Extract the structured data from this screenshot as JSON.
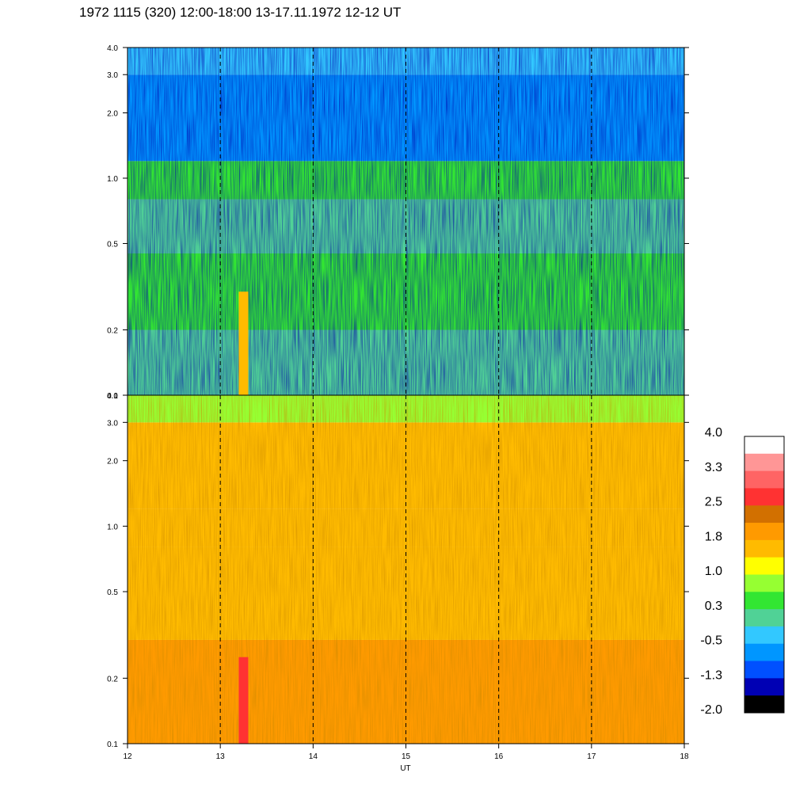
{
  "title": "1972 1115 (320) 12:00-18:00 13-17.11.1972  12-12 UT",
  "chart_data": {
    "type": "heatmap",
    "xlabel": "UT",
    "xlim": [
      12,
      18
    ],
    "x_ticks": [
      "12",
      "13",
      "14",
      "15",
      "16",
      "17",
      "18"
    ],
    "x_dashed_lines": [
      13,
      14,
      15,
      16,
      17
    ],
    "panels": [
      {
        "name": "upper",
        "y_scale": "log",
        "ylim": [
          0.1,
          4.0
        ],
        "y_ticks": [
          {
            "value": 0.1,
            "label": "0.1"
          },
          {
            "value": 0.2,
            "label": "0.2"
          },
          {
            "value": 0.5,
            "label": "0.5"
          },
          {
            "value": 1.0,
            "label": "1.0"
          },
          {
            "value": 2.0,
            "label": "2.0"
          },
          {
            "value": 3.0,
            "label": "3.0"
          },
          {
            "value": 4.0,
            "label": "4.0"
          }
        ],
        "approx_level_by_band": [
          {
            "y_range": [
              0.1,
              0.2
            ],
            "level": 0.1
          },
          {
            "y_range": [
              0.2,
              0.45
            ],
            "level": 0.5
          },
          {
            "y_range": [
              0.45,
              0.8
            ],
            "level": 0.2
          },
          {
            "y_range": [
              0.8,
              1.2
            ],
            "level": 0.3
          },
          {
            "y_range": [
              1.2,
              3.0
            ],
            "level": -0.6
          },
          {
            "y_range": [
              3.0,
              4.0
            ],
            "level": -0.3
          }
        ],
        "features": [
          {
            "x": 13.25,
            "y_range": [
              0.1,
              0.3
            ],
            "level": 1.5
          }
        ]
      },
      {
        "name": "lower",
        "y_scale": "log",
        "ylim": [
          0.1,
          4.0
        ],
        "y_ticks": [
          {
            "value": 0.1,
            "label": "0.1"
          },
          {
            "value": 0.2,
            "label": "0.2"
          },
          {
            "value": 0.5,
            "label": "0.5"
          },
          {
            "value": 1.0,
            "label": "1.0"
          },
          {
            "value": 2.0,
            "label": "2.0"
          },
          {
            "value": 3.0,
            "label": "3.0"
          },
          {
            "value": 4.0,
            "label": "4.0"
          }
        ],
        "approx_level_by_band": [
          {
            "y_range": [
              0.1,
              0.3
            ],
            "level": 1.9
          },
          {
            "y_range": [
              0.3,
              0.8
            ],
            "level": 1.7
          },
          {
            "y_range": [
              0.8,
              1.2
            ],
            "level": 1.5
          },
          {
            "y_range": [
              1.2,
              3.0
            ],
            "level": 1.4
          },
          {
            "y_range": [
              3.0,
              4.0
            ],
            "level": 0.9
          }
        ],
        "features": [
          {
            "x": 13.25,
            "y_range": [
              0.1,
              0.25
            ],
            "level": 2.8
          }
        ]
      }
    ],
    "colorbar": {
      "labels": [
        "4.0",
        "3.3",
        "2.5",
        "1.8",
        "1.0",
        "0.3",
        "-0.5",
        "-1.3",
        "-2.0"
      ],
      "colors": [
        "#ffffff",
        "#ff9696",
        "#ff6464",
        "#ff3232",
        "#d27000",
        "#ff9a00",
        "#ffbb00",
        "#ffff00",
        "#96ff32",
        "#32e632",
        "#50d296",
        "#32c8ff",
        "#0096ff",
        "#0050ff",
        "#0000b4",
        "#000000"
      ]
    }
  }
}
